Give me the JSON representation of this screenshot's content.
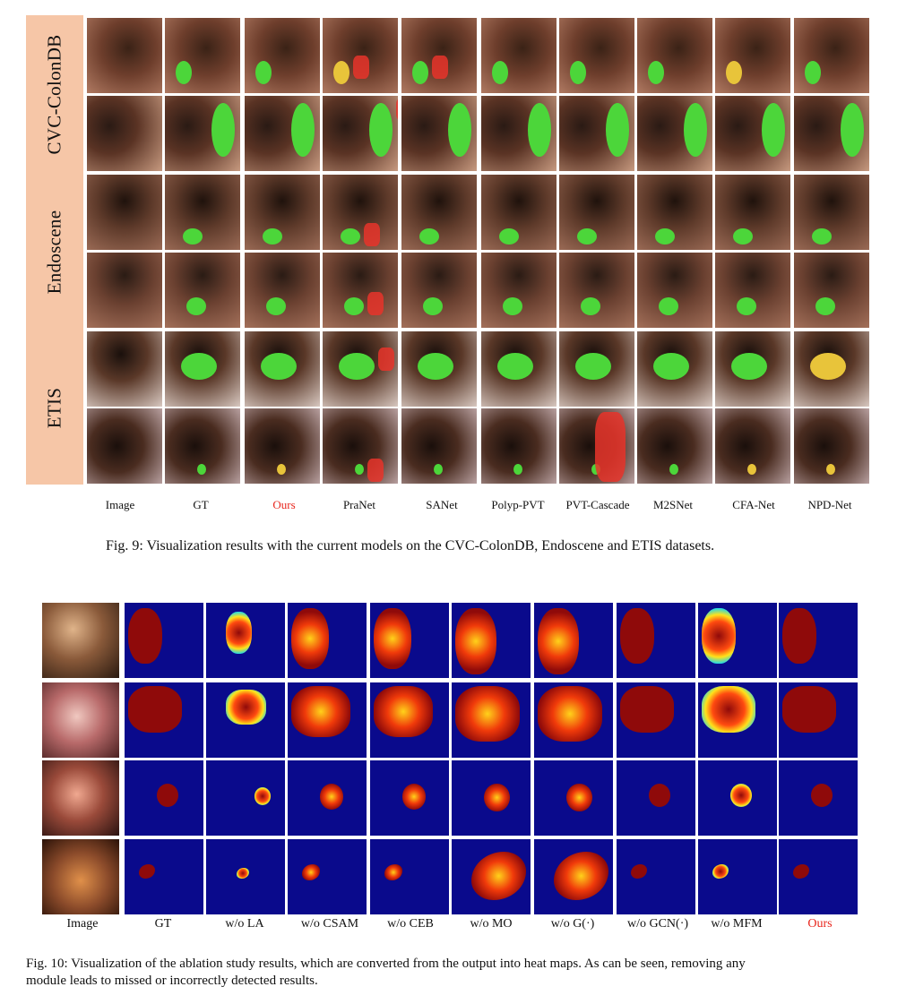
{
  "figure9": {
    "groups": [
      "CVC-ColonDB",
      "Endoscene",
      "ETIS"
    ],
    "column_labels": [
      "Image",
      "GT",
      "Ours",
      "PraNet",
      "SANet",
      "Polyp-PVT",
      "PVT-Cascade",
      "M2SNet",
      "CFA-Net",
      "NPD-Net"
    ],
    "caption": "Fig. 9: Visualization results with the current models on the CVC-ColonDB, Endoscene and ETIS datasets."
  },
  "figure10": {
    "column_labels": [
      "Image",
      "GT",
      "w/o LA",
      "w/o CSAM",
      "w/o CEB",
      "w/o MO",
      "w/o G(·)",
      "w/o GCN(·)",
      "w/o MFM",
      "Ours"
    ],
    "caption_line1": "Fig. 10: Visualization of the ablation study results, which are converted from the output into heat maps. As can be seen, removing any",
    "caption_line2": "module leads to missed or incorrectly detected results."
  },
  "colors": {
    "band": "#f6c6a7",
    "mask_green": "#4cd63a",
    "mask_red": "#e8342a",
    "mask_yellow": "#e8c43a",
    "heatmap_background": "#0a0a8c",
    "heatmap_foreground": "#8f0a0a",
    "ours_label": "#e8261d"
  }
}
